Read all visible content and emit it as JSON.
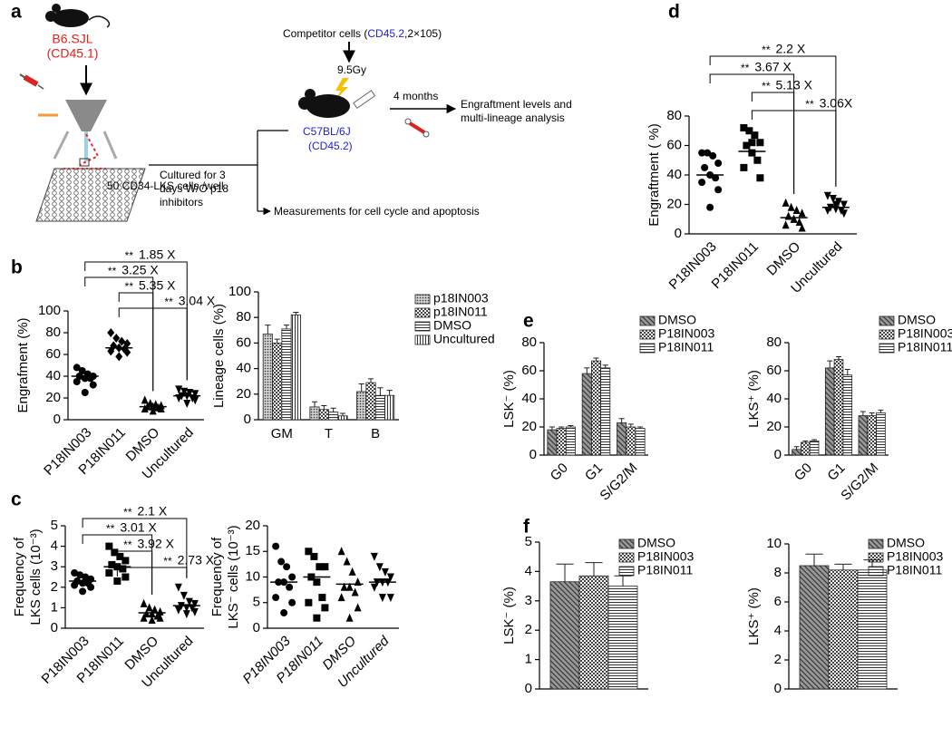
{
  "panel_labels": [
    "a",
    "b",
    "c",
    "d",
    "e",
    "f"
  ],
  "diagram": {
    "donor": "B6.SJL",
    "donor_marker": "(CD45.1)",
    "cells": "50 CD34-LKS cells /well",
    "culture": [
      "Cultured for 3",
      "days W/O p18",
      "inhibitors"
    ],
    "competitor": [
      "Competitor cells (",
      "CD45.2",
      ",2×105)"
    ],
    "irradiation": "9.5Gy",
    "recipient": "C57BL/6J",
    "recipient_marker": "(CD45.2)",
    "time": "4 months",
    "readout": [
      "Engraftment levels and",
      "multi-lineage analysis"
    ],
    "measurements": "Measurements for cell cycle and apoptosis"
  },
  "chart_data": [
    {
      "type": "dot",
      "ylabel": [
        "Engrafment (%)"
      ],
      "ylim": [
        0,
        100
      ],
      "yticks": [
        0,
        20,
        40,
        60,
        80,
        100
      ],
      "rotated_labels": true,
      "series": [
        {
          "name": "P18IN003",
          "marker": "circle",
          "values": [
            48,
            45,
            42,
            40,
            40,
            38,
            38,
            35,
            32,
            25
          ],
          "mean": 40
        },
        {
          "name": "P18IN011",
          "marker": "diamond",
          "values": [
            80,
            75,
            72,
            70,
            68,
            66,
            65,
            63,
            62,
            58
          ],
          "mean": 66
        },
        {
          "name": "DMSO",
          "marker": "triangle",
          "values": [
            18,
            15,
            14,
            13,
            12,
            12,
            11,
            10,
            10,
            8
          ],
          "mean": 12
        },
        {
          "name": "Uncultured",
          "marker": "triangle-down",
          "values": [
            28,
            26,
            25,
            24,
            22,
            22,
            20,
            20,
            18,
            15
          ],
          "mean": 22
        }
      ],
      "comparisons": [
        {
          "groups": [
            "P18IN003",
            "Uncultured"
          ],
          "stars": "**",
          "label": "1.85 X"
        },
        {
          "groups": [
            "P18IN003",
            "DMSO"
          ],
          "stars": "**",
          "label": "3.25 X"
        },
        {
          "groups": [
            "P18IN011",
            "DMSO"
          ],
          "stars": "**",
          "label": "5.35 X"
        },
        {
          "groups": [
            "P18IN011",
            "Uncultured"
          ],
          "stars": "**",
          "label": "3.04 X"
        }
      ]
    },
    {
      "type": "bar",
      "ylabel": [
        "Lineage cells (%)"
      ],
      "ylim": [
        0,
        100
      ],
      "yticks": [
        0,
        20,
        40,
        60,
        80,
        100
      ],
      "legend": "upper right",
      "categories": [
        "GM",
        "T",
        "B"
      ],
      "series": [
        {
          "name": "p18IN003",
          "pattern": "dots",
          "values": [
            67,
            10,
            22
          ],
          "errors": [
            7,
            4,
            6
          ]
        },
        {
          "name": "p18IN011",
          "pattern": "checker",
          "values": [
            60,
            8,
            29
          ],
          "errors": [
            3,
            3,
            3
          ]
        },
        {
          "name": "DMSO",
          "pattern": "hlines",
          "values": [
            71,
            6,
            19
          ],
          "errors": [
            3,
            3,
            6
          ]
        },
        {
          "name": "Uncultured",
          "pattern": "vlines",
          "values": [
            82,
            3,
            19
          ],
          "errors": [
            2,
            2,
            4
          ]
        }
      ]
    },
    {
      "type": "dot",
      "ylabel": [
        "Frequency of",
        "LKS cells (10⁻³)"
      ],
      "ylim": [
        0,
        5
      ],
      "yticks": [
        0,
        1,
        2,
        3,
        4,
        5
      ],
      "rotated_labels": true,
      "series": [
        {
          "name": "P18IN003",
          "marker": "circle",
          "values": [
            2.7,
            2.6,
            2.5,
            2.4,
            2.3,
            2.2,
            2.2,
            2.1,
            2.0,
            1.8
          ],
          "mean": 2.3
        },
        {
          "name": "P18IN011",
          "marker": "square",
          "values": [
            4.0,
            3.7,
            3.5,
            3.3,
            3.1,
            3.0,
            2.9,
            2.7,
            2.5,
            2.3
          ],
          "mean": 3.0
        },
        {
          "name": "DMSO",
          "marker": "triangle",
          "values": [
            1.2,
            1.0,
            0.9,
            0.8,
            0.7,
            0.7,
            0.6,
            0.5,
            0.5,
            0.4
          ],
          "mean": 0.75
        },
        {
          "name": "Uncultured",
          "marker": "triangle-down",
          "values": [
            2.0,
            1.6,
            1.3,
            1.2,
            1.1,
            1.0,
            1.0,
            0.9,
            0.8,
            0.7
          ],
          "mean": 1.1
        }
      ],
      "comparisons": [
        {
          "groups": [
            "P18IN003",
            "Uncultured"
          ],
          "stars": "**",
          "label": "2.1 X"
        },
        {
          "groups": [
            "P18IN003",
            "DMSO"
          ],
          "stars": "**",
          "label": "3.01 X"
        },
        {
          "groups": [
            "P18IN011",
            "DMSO"
          ],
          "stars": "**",
          "label": "3.92 X"
        },
        {
          "groups": [
            "P18IN011",
            "Uncultured"
          ],
          "stars": "**",
          "label": "2.73 X"
        }
      ]
    },
    {
      "type": "dot",
      "ylabel": [
        "Frequency of",
        "LKS⁻ cells (10⁻³)"
      ],
      "ylim": [
        0,
        20
      ],
      "yticks": [
        0,
        5,
        10,
        15,
        20
      ],
      "rotated_labels": true,
      "italic_labels": true,
      "series": [
        {
          "name": "P18IN003",
          "marker": "circle",
          "values": [
            16,
            13,
            12,
            10,
            9,
            9,
            8,
            6,
            5,
            3
          ],
          "mean": 9
        },
        {
          "name": "P18IN011",
          "marker": "square",
          "values": [
            15,
            14,
            12,
            12,
            10,
            9,
            6,
            5,
            4,
            2
          ],
          "mean": 10
        },
        {
          "name": "DMSO",
          "marker": "triangle",
          "values": [
            15,
            13,
            11,
            9,
            8,
            8,
            7,
            6,
            4,
            2
          ],
          "mean": 8.6
        },
        {
          "name": "Uncultured",
          "marker": "triangle-down",
          "values": [
            14,
            12,
            11,
            10,
            9,
            9,
            9,
            8,
            6,
            6
          ],
          "mean": 9
        }
      ]
    },
    {
      "type": "dot",
      "ylabel": [
        "Engraftment ( %)"
      ],
      "ylim": [
        0,
        80
      ],
      "yticks": [
        0,
        20,
        40,
        60,
        80
      ],
      "rotated_labels": true,
      "series": [
        {
          "name": "P18IN003",
          "marker": "circle",
          "values": [
            55,
            55,
            53,
            48,
            45,
            40,
            38,
            35,
            30,
            18
          ],
          "mean": 40
        },
        {
          "name": "P18IN011",
          "marker": "square",
          "values": [
            72,
            70,
            67,
            62,
            60,
            55,
            50,
            45,
            38,
            62
          ],
          "mean": 56
        },
        {
          "name": "DMSO",
          "marker": "triangle",
          "values": [
            21,
            18,
            16,
            14,
            12,
            10,
            8,
            6,
            4,
            10
          ],
          "mean": 11
        },
        {
          "name": "Uncultured",
          "marker": "triangle-down",
          "values": [
            26,
            24,
            22,
            20,
            18,
            17,
            16,
            16,
            14,
            20
          ],
          "mean": 18
        }
      ],
      "comparisons": [
        {
          "groups": [
            "P18IN003",
            "Uncultured"
          ],
          "stars": "**",
          "label": "2.2 X"
        },
        {
          "groups": [
            "P18IN003",
            "DMSO"
          ],
          "stars": "**",
          "label": "3.67 X"
        },
        {
          "groups": [
            "P18IN011",
            "DMSO"
          ],
          "stars": "**",
          "label": "5.13 X"
        },
        {
          "groups": [
            "P18IN011",
            "Uncultured"
          ],
          "stars": "**",
          "label": "3.06X"
        }
      ]
    },
    {
      "type": "bar",
      "ylabel": [
        "LSK⁻ (%)"
      ],
      "ylim": [
        0,
        80
      ],
      "yticks": [
        0,
        20,
        40,
        60,
        80
      ],
      "legend": "upper right",
      "rotated_labels": true,
      "categories": [
        "G0",
        "G1",
        "S/G2/M"
      ],
      "series": [
        {
          "name": "DMSO",
          "pattern": "diag",
          "values": [
            18,
            58,
            23
          ],
          "errors": [
            2,
            4,
            3
          ]
        },
        {
          "name": "P18IN003",
          "pattern": "checker",
          "values": [
            19,
            67,
            20
          ],
          "errors": [
            1,
            2,
            2
          ]
        },
        {
          "name": "P18IN011",
          "pattern": "hlines",
          "values": [
            20,
            62,
            19
          ],
          "errors": [
            1,
            2,
            1
          ]
        }
      ]
    },
    {
      "type": "bar",
      "ylabel": [
        "LKS⁺ (%)"
      ],
      "ylim": [
        0,
        80
      ],
      "yticks": [
        0,
        20,
        40,
        60,
        80
      ],
      "legend": "upper right",
      "rotated_labels": true,
      "categories": [
        "G0",
        "G1",
        "S/G2/M"
      ],
      "series": [
        {
          "name": "DMSO",
          "pattern": "diag",
          "values": [
            4,
            62,
            28
          ],
          "errors": [
            2,
            5,
            3
          ]
        },
        {
          "name": "P18IN003",
          "pattern": "checker",
          "values": [
            9,
            68,
            28
          ],
          "errors": [
            1,
            2,
            2
          ]
        },
        {
          "name": "P18IN011",
          "pattern": "hlines",
          "values": [
            10,
            57,
            30
          ],
          "errors": [
            1,
            4,
            2
          ]
        }
      ]
    },
    {
      "type": "bar",
      "ylabel": [
        "LSK⁻ (%)"
      ],
      "ylim": [
        0,
        5
      ],
      "yticks": [
        0,
        1,
        2,
        3,
        4,
        5
      ],
      "legend": "upper right",
      "categories": [
        null
      ],
      "series": [
        {
          "name": "DMSO",
          "pattern": "diag",
          "values": [
            3.65
          ],
          "errors": [
            0.6
          ]
        },
        {
          "name": "P18IN003",
          "pattern": "checker",
          "values": [
            3.85
          ],
          "errors": [
            0.45
          ]
        },
        {
          "name": "P18IN011",
          "pattern": "hlines",
          "values": [
            3.5
          ],
          "errors": [
            0.35
          ]
        }
      ]
    },
    {
      "type": "bar",
      "ylabel": [
        "LKS⁺ (%)"
      ],
      "ylim": [
        0,
        10
      ],
      "yticks": [
        0,
        2,
        4,
        6,
        8,
        10
      ],
      "legend": "upper right",
      "categories": [
        null
      ],
      "series": [
        {
          "name": "DMSO",
          "pattern": "diag",
          "values": [
            8.5
          ],
          "errors": [
            0.8
          ]
        },
        {
          "name": "P18IN003",
          "pattern": "checker",
          "values": [
            8.2
          ],
          "errors": [
            0.4
          ]
        },
        {
          "name": "P18IN011",
          "pattern": "hlines",
          "values": [
            8.2
          ],
          "errors": [
            0.7
          ]
        }
      ]
    }
  ]
}
